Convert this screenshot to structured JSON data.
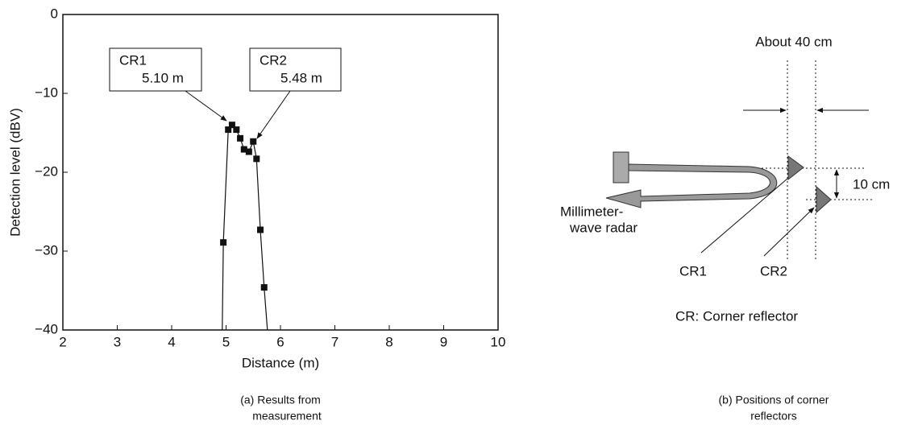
{
  "chart_data": {
    "type": "line",
    "x_label": "Distance (m)",
    "y_label": "Detection level (dBV)",
    "xlim": [
      2,
      10
    ],
    "xticks": [
      2,
      3,
      4,
      5,
      6,
      7,
      8,
      9,
      10
    ],
    "ylim": [
      -40,
      0
    ],
    "yticks": [
      0,
      {
        "value": -10,
        "label": "−10"
      },
      {
        "value": -20,
        "label": "−20"
      },
      {
        "value": -30,
        "label": "−30"
      },
      {
        "value": -40,
        "label": "−40"
      }
    ],
    "series": [
      {
        "color": "#111111",
        "marker": false,
        "line": true,
        "x": [
          4.93,
          4.95,
          5.04,
          5.11,
          5.19,
          5.26,
          5.33,
          5.42,
          5.5,
          5.56,
          5.63,
          5.7,
          5.76
        ],
        "values": [
          -40,
          -28.9,
          -14.6,
          -14.0,
          -14.6,
          -15.7,
          -17.1,
          -17.4,
          -16.1,
          -18.3,
          -27.3,
          -34.6,
          -40
        ]
      },
      {
        "color": "#111111",
        "marker": true,
        "line": false,
        "x": [
          4.95,
          5.04,
          5.11,
          5.19,
          5.26,
          5.33,
          5.42,
          5.5,
          5.56,
          5.63,
          5.7
        ],
        "values": [
          -28.9,
          -14.6,
          -14.0,
          -14.6,
          -15.7,
          -17.1,
          -17.4,
          -16.1,
          -18.3,
          -27.3,
          -34.6
        ]
      }
    ],
    "annotations": [
      {
        "name": "CR1",
        "text": "5.10 m"
      },
      {
        "name": "CR2",
        "text": "5.48 m"
      }
    ],
    "caption": [
      "(a) Results from",
      "measurement"
    ]
  },
  "diagram": {
    "spacing_label": "About 40 cm",
    "offset_label": "10 cm",
    "radar_label": [
      "Millimeter-",
      "wave radar"
    ],
    "reflectors": [
      "CR1",
      "CR2"
    ],
    "legend": "CR: Corner reflector",
    "caption": [
      "(b) Positions of corner",
      "reflectors"
    ]
  }
}
